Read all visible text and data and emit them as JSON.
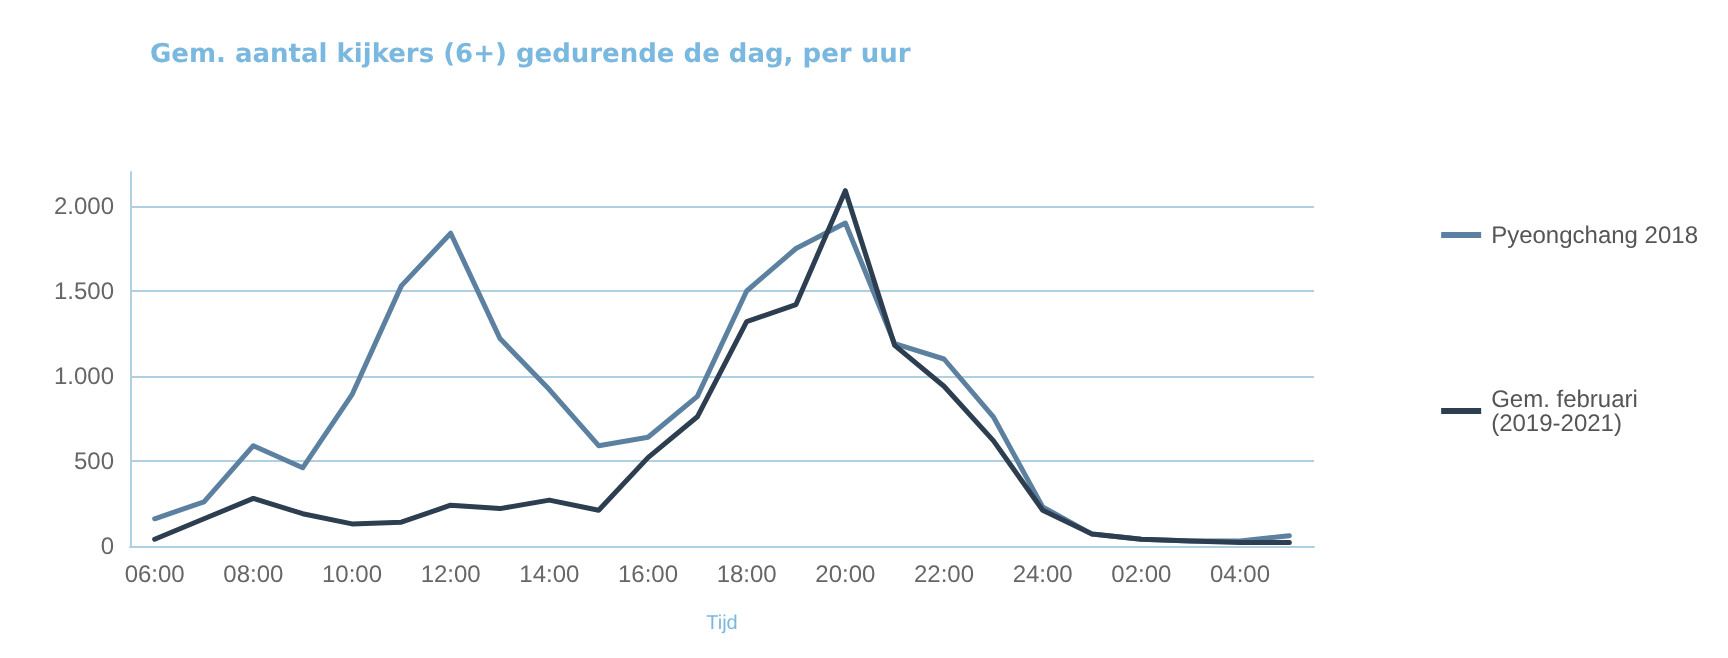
{
  "chart_data": {
    "type": "line",
    "title": "Gem. aantal kijkers (6+) gedurende de dag, per uur",
    "xlabel": "Tijd",
    "categories": [
      "06:00",
      null,
      "08:00",
      null,
      "10:00",
      null,
      "12:00",
      null,
      "14:00",
      null,
      "16:00",
      null,
      "18:00",
      null,
      "20:00",
      null,
      "22:00",
      null,
      "24:00",
      null,
      "02:00",
      null,
      "04:00",
      null
    ],
    "series": [
      {
        "name": "Pyeongchang 2018",
        "color": "#5b80a0",
        "values": [
          160,
          260,
          590,
          460,
          890,
          1530,
          1840,
          1220,
          920,
          590,
          640,
          880,
          1500,
          1750,
          1900,
          1190,
          1100,
          760,
          230,
          70,
          40,
          30,
          30,
          60
        ]
      },
      {
        "name": "Gem. februari (2019-2021)",
        "color": "#2c3e50",
        "values": [
          40,
          160,
          280,
          190,
          130,
          140,
          240,
          220,
          270,
          210,
          520,
          760,
          1320,
          1420,
          2090,
          1180,
          940,
          620,
          210,
          70,
          40,
          30,
          20,
          20
        ]
      }
    ],
    "ylim": [
      0,
      2200
    ],
    "yticks": [
      0,
      500,
      {
        "value": 1000,
        "label": "1.000"
      },
      {
        "value": 1500,
        "label": "1.500"
      },
      {
        "value": 2000,
        "label": "2.000"
      }
    ],
    "grid": "y",
    "legend": "right",
    "marker": "none",
    "line_style": "solid"
  }
}
